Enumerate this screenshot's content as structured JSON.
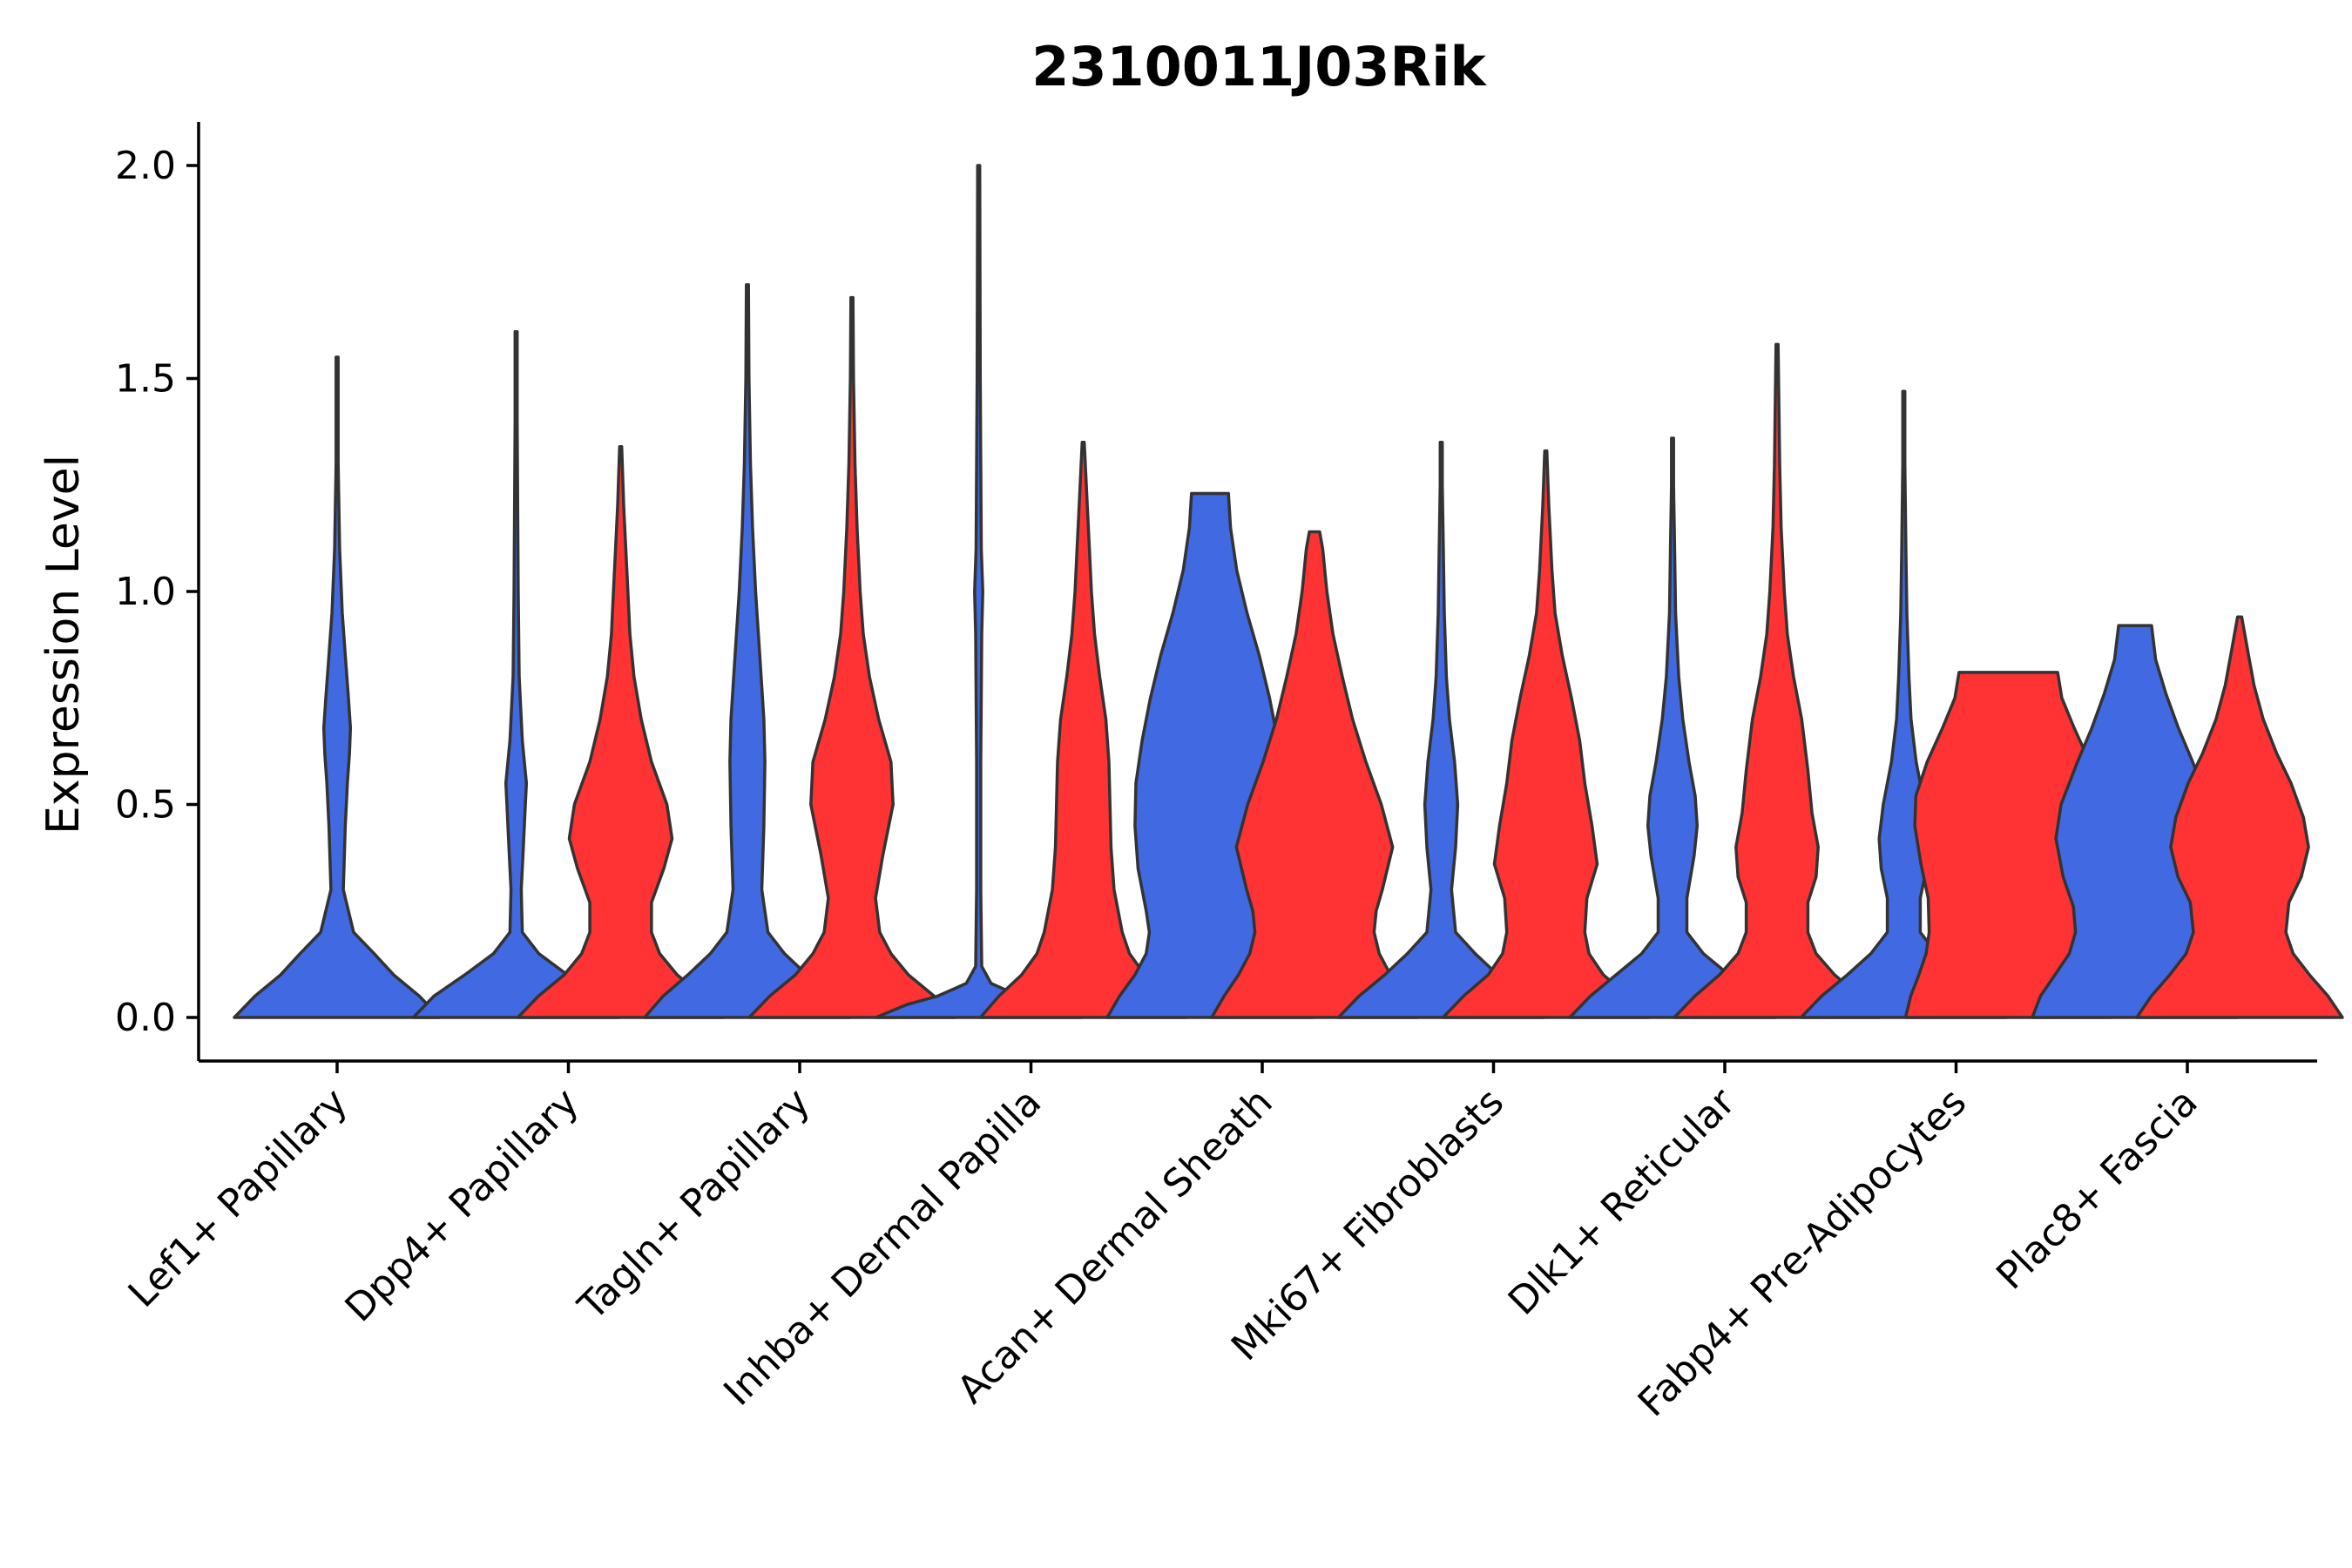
{
  "chart_data": {
    "type": "violin",
    "title": "2310011J03Rik",
    "xlabel": "",
    "ylabel": "Expression Level",
    "ylim": [
      -0.1,
      2.1
    ],
    "yticks": [
      0.0,
      0.5,
      1.0,
      1.5,
      2.0
    ],
    "ytick_labels": [
      "0.0",
      "0.5",
      "1.0",
      "1.5",
      "2.0"
    ],
    "grid": false,
    "legend": "none",
    "colors": {
      "blue": "#4169E1",
      "red": "#FF3333",
      "outline": "#333333"
    },
    "categories": [
      "Lef1+ Papillary",
      "Dpp4+ Papillary",
      "Tagln+ Papillary",
      "Inhba+ Dermal Papilla",
      "Acan+ Dermal Sheath",
      "Mki67+ Fibroblasts",
      "Dlk1+ Reticular",
      "Fabp4+ Pre-Adipocytes",
      "Plac8+ Fascia"
    ],
    "violins": [
      {
        "category": "Lef1+ Papillary",
        "color": "blue",
        "max": 1.55,
        "profile": [
          [
            0,
            1.0
          ],
          [
            0.05,
            0.8
          ],
          [
            0.1,
            0.55
          ],
          [
            0.15,
            0.36
          ],
          [
            0.2,
            0.16
          ],
          [
            0.3,
            0.06
          ],
          [
            0.45,
            0.08
          ],
          [
            0.55,
            0.1
          ],
          [
            0.62,
            0.12
          ],
          [
            0.68,
            0.13
          ],
          [
            0.75,
            0.11
          ],
          [
            0.85,
            0.08
          ],
          [
            0.95,
            0.05
          ],
          [
            1.1,
            0.025
          ],
          [
            1.3,
            0.01
          ],
          [
            1.45,
            0.006
          ],
          [
            1.55,
            0
          ]
        ]
      },
      {
        "category": "Dpp4+ Papillary",
        "color": "blue",
        "max": 1.61,
        "profile": [
          [
            0,
            1.0
          ],
          [
            0.05,
            0.8
          ],
          [
            0.1,
            0.5
          ],
          [
            0.15,
            0.22
          ],
          [
            0.2,
            0.06
          ],
          [
            0.3,
            0.05
          ],
          [
            0.4,
            0.07
          ],
          [
            0.5,
            0.09
          ],
          [
            0.55,
            0.1
          ],
          [
            0.65,
            0.06
          ],
          [
            0.8,
            0.03
          ],
          [
            1.0,
            0.02
          ],
          [
            1.2,
            0.015
          ],
          [
            1.4,
            0.008
          ],
          [
            1.61,
            0
          ]
        ]
      },
      {
        "category": "Dpp4+ Papillary",
        "color": "red",
        "max": 1.34,
        "profile": [
          [
            0,
            1.0
          ],
          [
            0.05,
            0.8
          ],
          [
            0.1,
            0.55
          ],
          [
            0.15,
            0.38
          ],
          [
            0.2,
            0.3
          ],
          [
            0.27,
            0.3
          ],
          [
            0.35,
            0.42
          ],
          [
            0.42,
            0.5
          ],
          [
            0.5,
            0.45
          ],
          [
            0.6,
            0.3
          ],
          [
            0.7,
            0.2
          ],
          [
            0.8,
            0.13
          ],
          [
            0.9,
            0.09
          ],
          [
            1.0,
            0.07
          ],
          [
            1.1,
            0.05
          ],
          [
            1.2,
            0.03
          ],
          [
            1.34,
            0
          ]
        ]
      },
      {
        "category": "Tagln+ Papillary",
        "color": "blue",
        "max": 1.72,
        "profile": [
          [
            0,
            1.0
          ],
          [
            0.05,
            0.82
          ],
          [
            0.1,
            0.58
          ],
          [
            0.15,
            0.36
          ],
          [
            0.2,
            0.2
          ],
          [
            0.3,
            0.14
          ],
          [
            0.45,
            0.16
          ],
          [
            0.6,
            0.17
          ],
          [
            0.7,
            0.16
          ],
          [
            0.85,
            0.12
          ],
          [
            1.0,
            0.08
          ],
          [
            1.15,
            0.05
          ],
          [
            1.3,
            0.03
          ],
          [
            1.5,
            0.015
          ],
          [
            1.72,
            0
          ]
        ]
      },
      {
        "category": "Tagln+ Papillary",
        "color": "red",
        "max": 1.69,
        "profile": [
          [
            0,
            1.0
          ],
          [
            0.05,
            0.8
          ],
          [
            0.1,
            0.55
          ],
          [
            0.15,
            0.38
          ],
          [
            0.2,
            0.27
          ],
          [
            0.28,
            0.23
          ],
          [
            0.38,
            0.3
          ],
          [
            0.5,
            0.4
          ],
          [
            0.6,
            0.38
          ],
          [
            0.7,
            0.26
          ],
          [
            0.8,
            0.17
          ],
          [
            0.9,
            0.11
          ],
          [
            1.0,
            0.08
          ],
          [
            1.15,
            0.05
          ],
          [
            1.3,
            0.03
          ],
          [
            1.5,
            0.015
          ],
          [
            1.69,
            0
          ]
        ]
      },
      {
        "category": "Inhba+ Dermal Papilla",
        "color": "blue",
        "max": 2.0,
        "profile": [
          [
            0,
            1.0
          ],
          [
            0.03,
            0.7
          ],
          [
            0.05,
            0.4
          ],
          [
            0.08,
            0.12
          ],
          [
            0.12,
            0.03
          ],
          [
            0.3,
            0.02
          ],
          [
            0.6,
            0.02
          ],
          [
            0.9,
            0.03
          ],
          [
            1.0,
            0.04
          ],
          [
            1.1,
            0.025
          ],
          [
            1.5,
            0.015
          ],
          [
            2.0,
            0
          ]
        ]
      },
      {
        "category": "Inhba+ Dermal Papilla",
        "color": "red",
        "max": 1.35,
        "profile": [
          [
            0,
            1.0
          ],
          [
            0.05,
            0.82
          ],
          [
            0.1,
            0.6
          ],
          [
            0.15,
            0.45
          ],
          [
            0.2,
            0.38
          ],
          [
            0.3,
            0.3
          ],
          [
            0.4,
            0.27
          ],
          [
            0.5,
            0.26
          ],
          [
            0.6,
            0.25
          ],
          [
            0.7,
            0.22
          ],
          [
            0.8,
            0.16
          ],
          [
            0.9,
            0.11
          ],
          [
            1.0,
            0.08
          ],
          [
            1.1,
            0.06
          ],
          [
            1.2,
            0.04
          ],
          [
            1.35,
            0
          ]
        ]
      },
      {
        "category": "Acan+ Dermal Sheath",
        "color": "blue",
        "max": 1.23,
        "profile": [
          [
            0,
            1.0
          ],
          [
            0.05,
            0.88
          ],
          [
            0.1,
            0.73
          ],
          [
            0.15,
            0.62
          ],
          [
            0.2,
            0.59
          ],
          [
            0.25,
            0.62
          ],
          [
            0.35,
            0.7
          ],
          [
            0.45,
            0.73
          ],
          [
            0.55,
            0.72
          ],
          [
            0.65,
            0.66
          ],
          [
            0.75,
            0.58
          ],
          [
            0.85,
            0.48
          ],
          [
            0.95,
            0.36
          ],
          [
            1.05,
            0.26
          ],
          [
            1.15,
            0.2
          ],
          [
            1.23,
            0.18
          ]
        ]
      },
      {
        "category": "Acan+ Dermal Sheath",
        "color": "red",
        "max": 1.14,
        "profile": [
          [
            0,
            1.0
          ],
          [
            0.05,
            0.88
          ],
          [
            0.1,
            0.74
          ],
          [
            0.15,
            0.63
          ],
          [
            0.2,
            0.58
          ],
          [
            0.25,
            0.6
          ],
          [
            0.3,
            0.66
          ],
          [
            0.4,
            0.76
          ],
          [
            0.5,
            0.65
          ],
          [
            0.6,
            0.5
          ],
          [
            0.7,
            0.37
          ],
          [
            0.8,
            0.27
          ],
          [
            0.9,
            0.18
          ],
          [
            1.0,
            0.12
          ],
          [
            1.1,
            0.08
          ],
          [
            1.14,
            0.05
          ]
        ]
      },
      {
        "category": "Mki67+ Fibroblasts",
        "color": "blue",
        "max": 1.35,
        "profile": [
          [
            0,
            1.0
          ],
          [
            0.05,
            0.8
          ],
          [
            0.1,
            0.55
          ],
          [
            0.15,
            0.33
          ],
          [
            0.2,
            0.14
          ],
          [
            0.3,
            0.1
          ],
          [
            0.4,
            0.14
          ],
          [
            0.5,
            0.16
          ],
          [
            0.6,
            0.13
          ],
          [
            0.7,
            0.08
          ],
          [
            0.8,
            0.05
          ],
          [
            0.95,
            0.03
          ],
          [
            1.1,
            0.02
          ],
          [
            1.25,
            0.01
          ],
          [
            1.35,
            0
          ]
        ]
      },
      {
        "category": "Mki67+ Fibroblasts",
        "color": "red",
        "max": 1.33,
        "profile": [
          [
            0,
            1.0
          ],
          [
            0.05,
            0.8
          ],
          [
            0.1,
            0.56
          ],
          [
            0.15,
            0.42
          ],
          [
            0.2,
            0.38
          ],
          [
            0.28,
            0.4
          ],
          [
            0.36,
            0.5
          ],
          [
            0.45,
            0.45
          ],
          [
            0.55,
            0.38
          ],
          [
            0.65,
            0.33
          ],
          [
            0.75,
            0.25
          ],
          [
            0.85,
            0.16
          ],
          [
            0.95,
            0.09
          ],
          [
            1.05,
            0.06
          ],
          [
            1.2,
            0.03
          ],
          [
            1.33,
            0
          ]
        ]
      },
      {
        "category": "Dlk1+ Reticular",
        "color": "blue",
        "max": 1.36,
        "profile": [
          [
            0,
            1.0
          ],
          [
            0.05,
            0.8
          ],
          [
            0.1,
            0.55
          ],
          [
            0.15,
            0.3
          ],
          [
            0.2,
            0.14
          ],
          [
            0.28,
            0.14
          ],
          [
            0.38,
            0.21
          ],
          [
            0.45,
            0.24
          ],
          [
            0.52,
            0.22
          ],
          [
            0.6,
            0.16
          ],
          [
            0.7,
            0.1
          ],
          [
            0.8,
            0.06
          ],
          [
            0.95,
            0.03
          ],
          [
            1.1,
            0.02
          ],
          [
            1.25,
            0.01
          ],
          [
            1.36,
            0
          ]
        ]
      },
      {
        "category": "Dlk1+ Reticular",
        "color": "red",
        "max": 1.58,
        "profile": [
          [
            0,
            1.0
          ],
          [
            0.05,
            0.8
          ],
          [
            0.1,
            0.56
          ],
          [
            0.15,
            0.38
          ],
          [
            0.2,
            0.3
          ],
          [
            0.27,
            0.3
          ],
          [
            0.33,
            0.38
          ],
          [
            0.4,
            0.4
          ],
          [
            0.48,
            0.34
          ],
          [
            0.58,
            0.3
          ],
          [
            0.7,
            0.24
          ],
          [
            0.8,
            0.16
          ],
          [
            0.9,
            0.1
          ],
          [
            1.0,
            0.07
          ],
          [
            1.15,
            0.04
          ],
          [
            1.3,
            0.025
          ],
          [
            1.58,
            0
          ]
        ]
      },
      {
        "category": "Fabp4+ Pre-Adipocytes",
        "color": "blue",
        "max": 1.47,
        "profile": [
          [
            0,
            1.0
          ],
          [
            0.05,
            0.8
          ],
          [
            0.1,
            0.55
          ],
          [
            0.15,
            0.32
          ],
          [
            0.2,
            0.16
          ],
          [
            0.28,
            0.16
          ],
          [
            0.35,
            0.22
          ],
          [
            0.42,
            0.24
          ],
          [
            0.5,
            0.2
          ],
          [
            0.6,
            0.12
          ],
          [
            0.7,
            0.07
          ],
          [
            0.8,
            0.05
          ],
          [
            0.95,
            0.03
          ],
          [
            1.1,
            0.02
          ],
          [
            1.3,
            0.01
          ],
          [
            1.47,
            0
          ]
        ]
      },
      {
        "category": "Fabp4+ Pre-Adipocytes",
        "color": "red",
        "max": 0.81,
        "profile": [
          [
            0,
            1.0
          ],
          [
            0.05,
            0.95
          ],
          [
            0.1,
            0.87
          ],
          [
            0.15,
            0.8
          ],
          [
            0.2,
            0.77
          ],
          [
            0.28,
            0.78
          ],
          [
            0.36,
            0.85
          ],
          [
            0.45,
            0.91
          ],
          [
            0.52,
            0.9
          ],
          [
            0.6,
            0.79
          ],
          [
            0.68,
            0.64
          ],
          [
            0.75,
            0.52
          ],
          [
            0.81,
            0.48
          ]
        ]
      },
      {
        "category": "Plac8+ Fascia",
        "color": "blue",
        "max": 0.92,
        "profile": [
          [
            0,
            1.0
          ],
          [
            0.05,
            0.92
          ],
          [
            0.1,
            0.78
          ],
          [
            0.15,
            0.64
          ],
          [
            0.2,
            0.58
          ],
          [
            0.26,
            0.6
          ],
          [
            0.33,
            0.7
          ],
          [
            0.42,
            0.77
          ],
          [
            0.5,
            0.72
          ],
          [
            0.6,
            0.56
          ],
          [
            0.68,
            0.42
          ],
          [
            0.76,
            0.3
          ],
          [
            0.84,
            0.2
          ],
          [
            0.92,
            0.16
          ]
        ]
      },
      {
        "category": "Plac8+ Fascia",
        "color": "red",
        "max": 0.94,
        "profile": [
          [
            0,
            1.0
          ],
          [
            0.05,
            0.86
          ],
          [
            0.1,
            0.68
          ],
          [
            0.15,
            0.52
          ],
          [
            0.2,
            0.45
          ],
          [
            0.27,
            0.48
          ],
          [
            0.33,
            0.6
          ],
          [
            0.4,
            0.67
          ],
          [
            0.47,
            0.62
          ],
          [
            0.55,
            0.5
          ],
          [
            0.62,
            0.36
          ],
          [
            0.7,
            0.23
          ],
          [
            0.78,
            0.14
          ],
          [
            0.86,
            0.08
          ],
          [
            0.94,
            0.02
          ]
        ]
      }
    ]
  }
}
